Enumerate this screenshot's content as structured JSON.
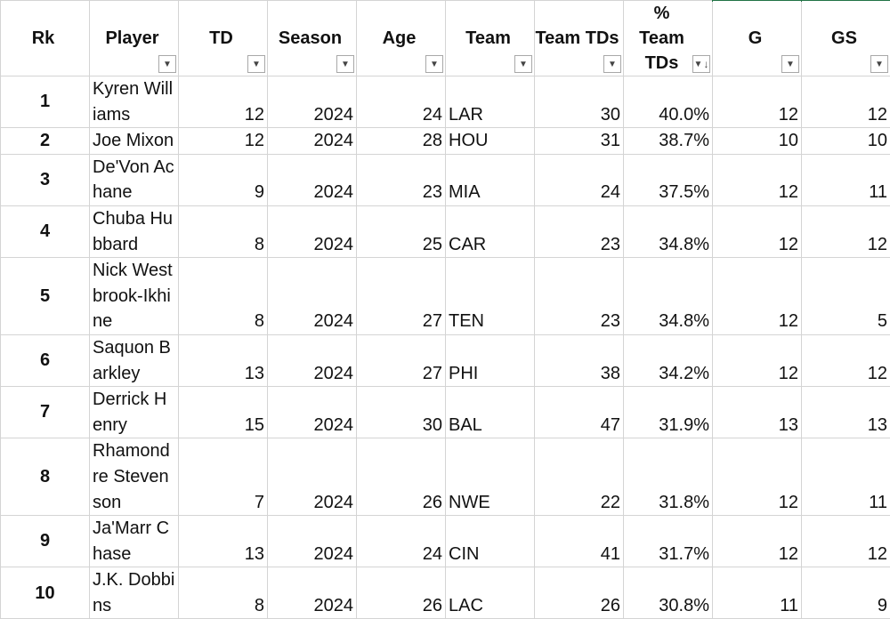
{
  "columns": [
    {
      "label": "Rk",
      "filter": false
    },
    {
      "label": "Player",
      "filter": true
    },
    {
      "label": "TD",
      "filter": true
    },
    {
      "label": "Season",
      "filter": true
    },
    {
      "label": "Age",
      "filter": true
    },
    {
      "label": "Team",
      "filter": true
    },
    {
      "label": "Team TDs",
      "filter": true
    },
    {
      "label": "% Team TDs",
      "filter": true,
      "sorted": "descending"
    },
    {
      "label": "G",
      "filter": true
    },
    {
      "label": "GS",
      "filter": true
    }
  ],
  "rows": [
    {
      "rk": "1",
      "player": "Kyren Williams",
      "td": "12",
      "season": "2024",
      "age": "24",
      "team": "LAR",
      "team_tds": "30",
      "pct": "40.0%",
      "g": "12",
      "gs": "12"
    },
    {
      "rk": "2",
      "player": "Joe Mixon",
      "td": "12",
      "season": "2024",
      "age": "28",
      "team": "HOU",
      "team_tds": "31",
      "pct": "38.7%",
      "g": "10",
      "gs": "10"
    },
    {
      "rk": "3",
      "player": "De'Von Achane",
      "td": "9",
      "season": "2024",
      "age": "23",
      "team": "MIA",
      "team_tds": "24",
      "pct": "37.5%",
      "g": "12",
      "gs": "11"
    },
    {
      "rk": "4",
      "player": "Chuba Hubbard",
      "td": "8",
      "season": "2024",
      "age": "25",
      "team": "CAR",
      "team_tds": "23",
      "pct": "34.8%",
      "g": "12",
      "gs": "12"
    },
    {
      "rk": "5",
      "player": "Nick Westbrook-Ikhine",
      "td": "8",
      "season": "2024",
      "age": "27",
      "team": "TEN",
      "team_tds": "23",
      "pct": "34.8%",
      "g": "12",
      "gs": "5"
    },
    {
      "rk": "6",
      "player": "Saquon Barkley",
      "td": "13",
      "season": "2024",
      "age": "27",
      "team": "PHI",
      "team_tds": "38",
      "pct": "34.2%",
      "g": "12",
      "gs": "12"
    },
    {
      "rk": "7",
      "player": "Derrick Henry",
      "td": "15",
      "season": "2024",
      "age": "30",
      "team": "BAL",
      "team_tds": "47",
      "pct": "31.9%",
      "g": "13",
      "gs": "13"
    },
    {
      "rk": "8",
      "player": "Rhamondre Stevenson",
      "td": "7",
      "season": "2024",
      "age": "26",
      "team": "NWE",
      "team_tds": "22",
      "pct": "31.8%",
      "g": "12",
      "gs": "11"
    },
    {
      "rk": "9",
      "player": "Ja'Marr Chase",
      "td": "13",
      "season": "2024",
      "age": "24",
      "team": "CIN",
      "team_tds": "41",
      "pct": "31.7%",
      "g": "12",
      "gs": "12"
    },
    {
      "rk": "10",
      "player": "J.K. Dobbins",
      "td": "8",
      "season": "2024",
      "age": "26",
      "team": "LAC",
      "team_tds": "26",
      "pct": "30.8%",
      "g": "11",
      "gs": "9"
    }
  ],
  "colors": {
    "grid": "#d4d4d4",
    "accent": "#217346",
    "text": "#111111"
  },
  "icons": {
    "filter": "filter-dropdown-icon",
    "sort": "sort-descending-icon"
  }
}
